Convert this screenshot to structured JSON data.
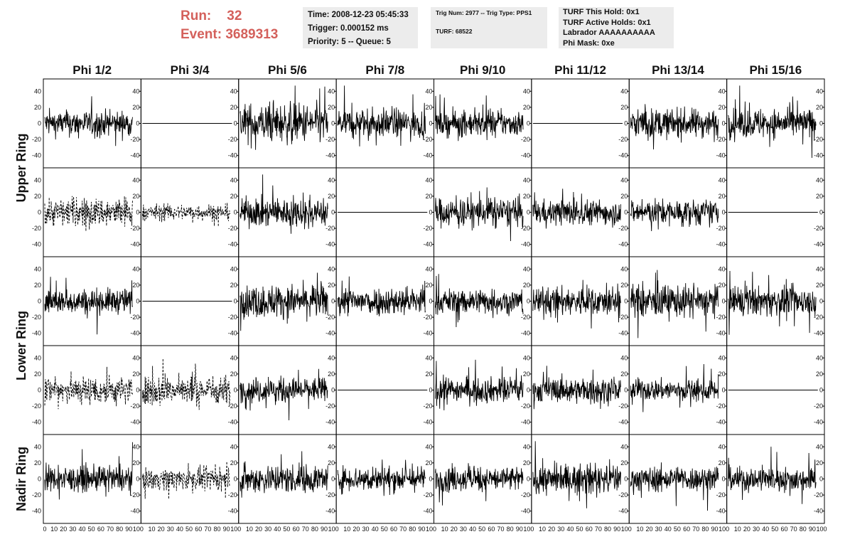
{
  "header": {
    "run_label": "Run:",
    "run_value": "32",
    "event_label": "Event:",
    "event_value": "3689313"
  },
  "info_panel_1": {
    "time": "Time: 2008-12-23 05:45:33",
    "trigger": "Trigger: 0.000152 ms",
    "priority": "Priority: 5 -- Queue: 5"
  },
  "info_panel_2": {
    "trig": "Trig Num: 2977 -- Trig Type: PPS1",
    "turf": "TURF: 68522"
  },
  "info_panel_3": {
    "hold": "TURF This Hold: 0x1",
    "active": "TURF Active Holds: 0x1",
    "labrador": "Labrador AAAAAAAAAA",
    "mask": "Phi Mask: 0xe"
  },
  "chart_data": {
    "type": "line",
    "columns": [
      "Phi 1/2",
      "Phi 3/4",
      "Phi 5/6",
      "Phi 7/8",
      "Phi 9/10",
      "Phi 11/12",
      "Phi 13/14",
      "Phi 15/16"
    ],
    "ring_labels": [
      "Upper Ring",
      "Lower Ring",
      "Nadir Ring"
    ],
    "xlim": [
      0,
      100
    ],
    "ylim": [
      -50,
      50
    ],
    "x_ticks": [
      "0",
      "10",
      "20",
      "30",
      "40",
      "50",
      "60",
      "70",
      "80",
      "90",
      "100"
    ],
    "y_ticks": [
      "40",
      "20",
      "0",
      "-20",
      "-40"
    ],
    "rows": [
      [
        "solid",
        "flat",
        "solid",
        "solid",
        "solid",
        "flat",
        "solid",
        "solid"
      ],
      [
        "dashed",
        "dashed",
        "solid",
        "flat",
        "solid",
        "solid",
        "solid",
        "flat"
      ],
      [
        "solid",
        "flat",
        "solid",
        "solid",
        "solid",
        "solid",
        "solid",
        "solid"
      ],
      [
        "dashed",
        "dashed",
        "solid",
        "flat",
        "solid",
        "solid",
        "solid",
        "flat"
      ],
      [
        "solid",
        "dashed",
        "solid",
        "solid",
        "solid",
        "solid",
        "solid",
        "solid"
      ]
    ],
    "amplitude": [
      [
        14,
        0,
        22,
        16,
        14,
        0,
        16,
        16
      ],
      [
        16,
        9,
        16,
        0,
        16,
        14,
        14,
        0
      ],
      [
        14,
        0,
        18,
        16,
        14,
        16,
        18,
        16
      ],
      [
        16,
        16,
        14,
        0,
        14,
        14,
        12,
        0
      ],
      [
        14,
        12,
        16,
        14,
        14,
        16,
        14,
        14
      ]
    ],
    "colors": {
      "trace": "#000000",
      "header": "#d4605b",
      "panel": "#ececec"
    }
  }
}
